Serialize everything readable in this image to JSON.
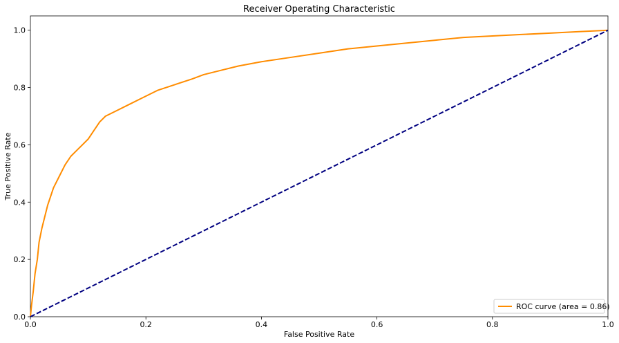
{
  "chart_data": {
    "type": "line",
    "title": "Receiver Operating Characteristic",
    "xlabel": "False Positive Rate",
    "ylabel": "True Positive Rate",
    "xlim": [
      0.0,
      1.0
    ],
    "ylim": [
      0.0,
      1.05
    ],
    "grid": false,
    "legend_position": "bottom-right",
    "x_ticks": [
      0.0,
      0.2,
      0.4,
      0.6,
      0.8,
      1.0
    ],
    "y_ticks": [
      0.0,
      0.2,
      0.4,
      0.6,
      0.8,
      1.0
    ],
    "x_tick_labels": [
      "0.0",
      "0.2",
      "0.4",
      "0.6",
      "0.8",
      "1.0"
    ],
    "y_tick_labels": [
      "0.0",
      "0.2",
      "0.4",
      "0.6",
      "0.8",
      "1.0"
    ],
    "series": [
      {
        "name": "ROC curve (area = 0.86)",
        "color": "#ff8c00",
        "style": "solid",
        "x": [
          0.0,
          0.002,
          0.005,
          0.008,
          0.012,
          0.015,
          0.02,
          0.025,
          0.03,
          0.035,
          0.04,
          0.05,
          0.06,
          0.07,
          0.08,
          0.09,
          0.1,
          0.11,
          0.12,
          0.13,
          0.15,
          0.17,
          0.19,
          0.2,
          0.22,
          0.25,
          0.28,
          0.3,
          0.33,
          0.36,
          0.4,
          0.45,
          0.5,
          0.55,
          0.6,
          0.65,
          0.7,
          0.75,
          0.8,
          0.85,
          0.9,
          0.95,
          1.0
        ],
        "y": [
          0.0,
          0.04,
          0.09,
          0.15,
          0.2,
          0.26,
          0.31,
          0.35,
          0.39,
          0.42,
          0.45,
          0.49,
          0.53,
          0.56,
          0.58,
          0.6,
          0.62,
          0.65,
          0.68,
          0.7,
          0.72,
          0.74,
          0.76,
          0.77,
          0.79,
          0.81,
          0.83,
          0.845,
          0.86,
          0.875,
          0.89,
          0.905,
          0.92,
          0.935,
          0.945,
          0.955,
          0.965,
          0.975,
          0.98,
          0.985,
          0.99,
          0.995,
          1.0
        ]
      },
      {
        "name": "",
        "color": "#000080",
        "style": "dashed",
        "x": [
          0.0,
          1.0
        ],
        "y": [
          0.0,
          1.0
        ]
      }
    ],
    "legend": [
      {
        "label": "ROC curve (area = 0.86)",
        "color": "#ff8c00"
      }
    ]
  }
}
